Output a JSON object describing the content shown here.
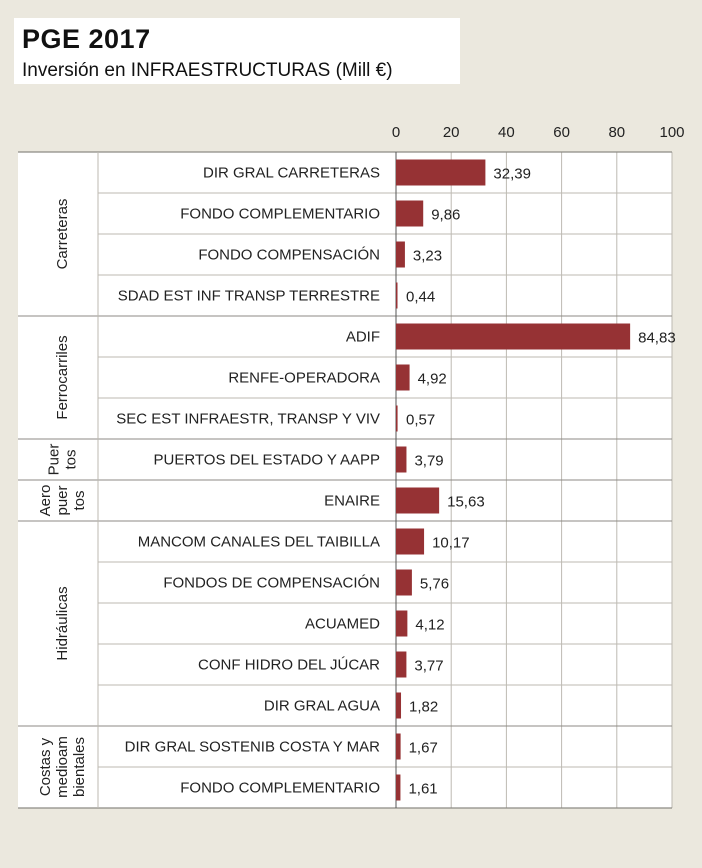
{
  "title": "PGE 2017",
  "subtitle": "Inversión en INFRAESTRUCTURAS (Mill €)",
  "colors": {
    "bar": "#963234",
    "background": "#ebe8de",
    "panel": "#ffffff",
    "grid": "#bdbab2"
  },
  "chart_data": {
    "type": "bar",
    "orientation": "horizontal",
    "xlim": [
      0,
      100
    ],
    "x_ticks": [
      "0",
      "20",
      "40",
      "60",
      "80",
      "100"
    ],
    "grid": true,
    "groups": [
      {
        "label_lines": [
          "Carreteras"
        ],
        "categories": [
          "DIR GRAL CARRETERAS",
          "FONDO COMPLEMENTARIO",
          "FONDO COMPENSACIÓN",
          "SDAD EST INF TRANSP TERRESTRE"
        ]
      },
      {
        "label_lines": [
          "Ferrocarriles"
        ],
        "categories": [
          "ADIF",
          "RENFE-OPERADORA",
          "SEC EST INFRAESTR, TRANSP Y VIV"
        ]
      },
      {
        "label_lines": [
          "Puer",
          "tos"
        ],
        "categories": [
          "PUERTOS DEL ESTADO Y AAPP"
        ]
      },
      {
        "label_lines": [
          "Aero",
          "puer",
          "tos"
        ],
        "categories": [
          "ENAIRE"
        ]
      },
      {
        "label_lines": [
          "Hidráulicas"
        ],
        "categories": [
          "MANCOM CANALES DEL TAIBILLA",
          "FONDOS DE COMPENSACIÓN",
          "ACUAMED",
          "CONF HIDRO DEL JÚCAR",
          "DIR GRAL AGUA"
        ]
      },
      {
        "label_lines": [
          "Costas y",
          "medioam",
          "bientales"
        ],
        "categories": [
          "DIR GRAL SOSTENIB COSTA Y MAR",
          "FONDO COMPLEMENTARIO"
        ]
      }
    ],
    "categories": [
      "DIR GRAL CARRETERAS",
      "FONDO COMPLEMENTARIO",
      "FONDO COMPENSACIÓN",
      "SDAD EST INF TRANSP TERRESTRE",
      "ADIF",
      "RENFE-OPERADORA",
      "SEC EST INFRAESTR, TRANSP Y VIV",
      "PUERTOS DEL ESTADO Y AAPP",
      "ENAIRE",
      "MANCOM CANALES DEL TAIBILLA",
      "FONDOS DE COMPENSACIÓN",
      "ACUAMED",
      "CONF HIDRO DEL JÚCAR",
      "DIR GRAL AGUA",
      "DIR GRAL SOSTENIB COSTA Y MAR",
      "FONDO COMPLEMENTARIO"
    ],
    "values": [
      32.39,
      9.86,
      3.23,
      0.44,
      84.83,
      4.92,
      0.57,
      3.79,
      15.63,
      10.17,
      5.76,
      4.12,
      3.77,
      1.82,
      1.67,
      1.61
    ],
    "value_labels": [
      "32,39",
      "9,86",
      "3,23",
      "0,44",
      "84,83",
      "4,92",
      "0,57",
      "3,79",
      "15,63",
      "10,17",
      "5,76",
      "4,12",
      "3,77",
      "1,82",
      "1,67",
      "1,61"
    ]
  }
}
